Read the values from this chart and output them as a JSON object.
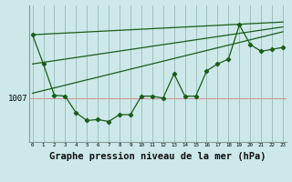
{
  "title": "Graphe pression niveau de la mer (hPa)",
  "bg_color": "#cce8e8",
  "plot_bg_color": "#cce8e8",
  "line_color": "#1a5c1a",
  "grid_color": "#99bbbb",
  "hline_color": "#cc9999",
  "hline_y": 1007,
  "x_values": [
    0,
    1,
    2,
    3,
    4,
    5,
    6,
    7,
    8,
    9,
    10,
    11,
    12,
    13,
    14,
    15,
    16,
    17,
    18,
    19,
    20,
    21,
    22,
    23
  ],
  "pressure_data": [
    1013.5,
    1010.5,
    1007.3,
    1007.2,
    1005.5,
    1004.7,
    1004.8,
    1004.6,
    1005.3,
    1005.3,
    1007.2,
    1007.2,
    1007.0,
    1009.5,
    1007.2,
    1007.2,
    1009.8,
    1010.5,
    1011.0,
    1014.5,
    1012.5,
    1011.8,
    1012.0,
    1012.2
  ],
  "line1_x": [
    0,
    23
  ],
  "line1_y": [
    1013.5,
    1014.8
  ],
  "line2_x": [
    0,
    23
  ],
  "line2_y": [
    1007.5,
    1013.8
  ],
  "line3_x": [
    0,
    23
  ],
  "line3_y": [
    1010.5,
    1014.3
  ],
  "xlim": [
    -0.3,
    23.3
  ],
  "ylim": [
    1002.5,
    1016.5
  ],
  "title_fontsize": 7.5
}
